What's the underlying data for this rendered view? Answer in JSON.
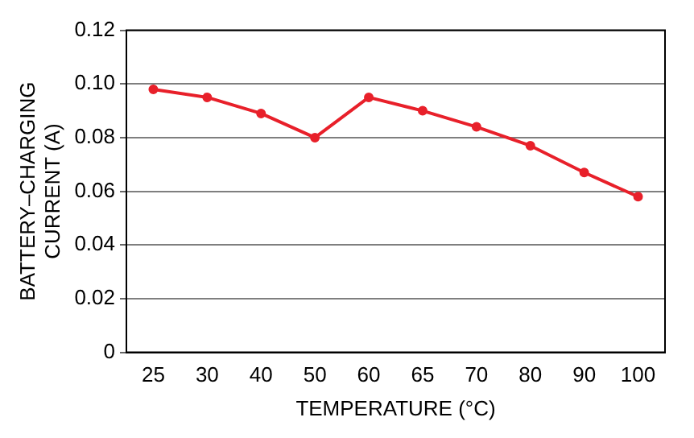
{
  "chart_data": {
    "type": "line",
    "xlabel": "TEMPERATURE (°C)",
    "ylabel": "BATTERY–CHARGING\nCURRENT (A)",
    "categories": [
      "25",
      "30",
      "40",
      "50",
      "60",
      "65",
      "70",
      "80",
      "90",
      "100"
    ],
    "series": [
      {
        "color": "#e8202a",
        "values": [
          0.098,
          0.095,
          0.089,
          0.08,
          0.095,
          0.09,
          0.084,
          0.077,
          0.067,
          0.058
        ]
      }
    ],
    "ylim": [
      0,
      0.12
    ],
    "yticks": [
      0,
      0.02,
      0.04,
      0.06,
      0.08,
      {
        "value": 0.1,
        "label": "0.10"
      },
      0.12
    ],
    "grid": "y",
    "marker": "circle",
    "line_style": "solid"
  }
}
